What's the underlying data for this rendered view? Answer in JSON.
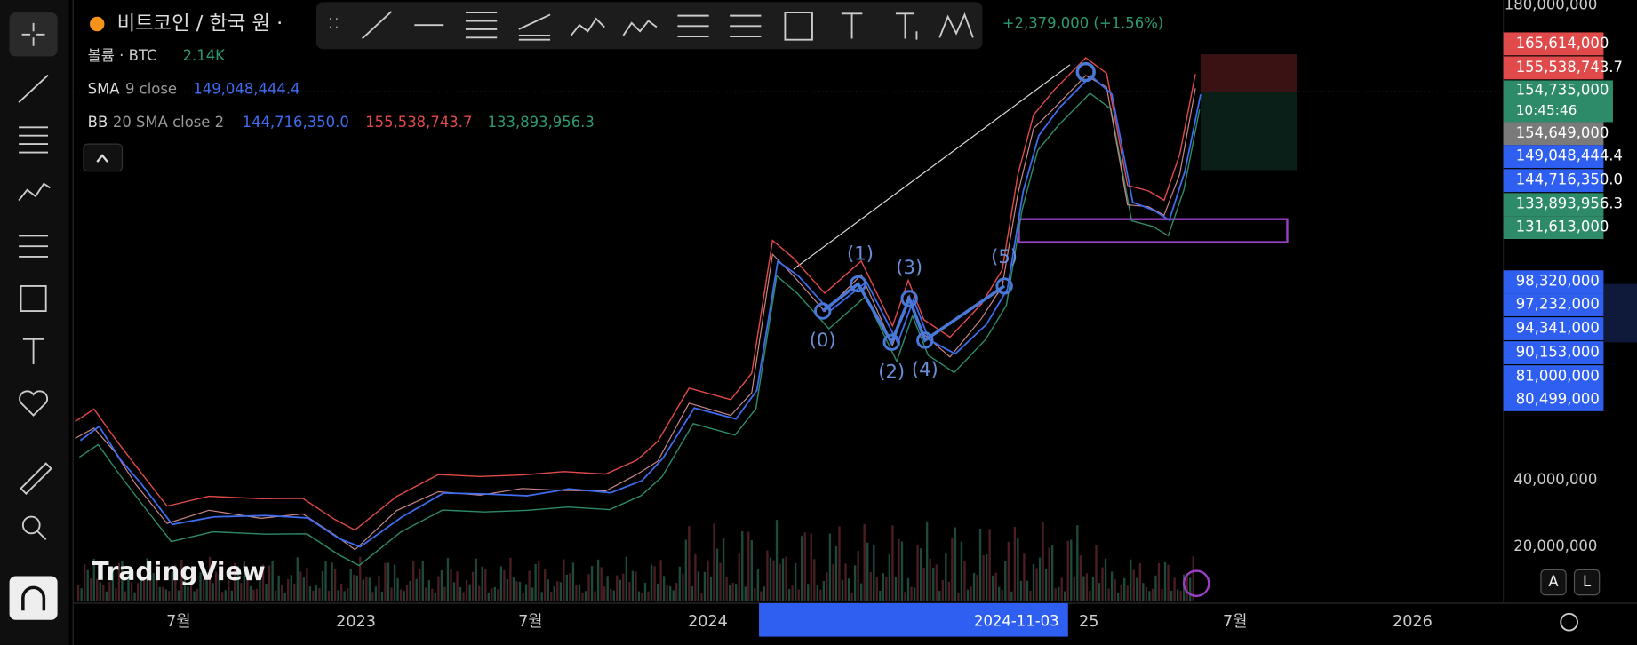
{
  "header": {
    "symbol": "비트코인 / 한국 원 ·",
    "change": "+2,379,000 (+1.56%)"
  },
  "legend": {
    "volume": {
      "label": "볼륨 · BTC",
      "value": "2.14K"
    },
    "sma": {
      "name": "SMA",
      "params": "9 close",
      "value": "149,048,444.4"
    },
    "bb": {
      "name": "BB",
      "params": "20 SMA close 2",
      "values": [
        "144,716,350.0",
        "155,538,743.7",
        "133,893,956.3"
      ]
    }
  },
  "price_axis": {
    "labels": [
      "180,000,000",
      "40,000,000",
      "20,000,000"
    ]
  },
  "price_labels": [
    {
      "text": "165,614,000",
      "color": "#e04a4a"
    },
    {
      "text": "155,538,743.7",
      "color": "#e04a4a"
    },
    {
      "text": "154,735,000",
      "sub": "10:45:46",
      "color": "#2e8b6a"
    },
    {
      "text": "154,649,000",
      "color": "#7a7a7a"
    },
    {
      "text": "149,048,444.4",
      "color": "#2f5ff0"
    },
    {
      "text": "144,716,350.0",
      "color": "#2f5ff0"
    },
    {
      "text": "133,893,956.3",
      "color": "#2e8b6a"
    },
    {
      "text": "131,613,000",
      "color": "#2e8b6a"
    },
    {
      "text": "98,320,000",
      "color": "#2f5ff0"
    },
    {
      "text": "97,232,000",
      "color": "#2f5ff0"
    },
    {
      "text": "94,341,000",
      "color": "#2f5ff0"
    },
    {
      "text": "90,153,000",
      "color": "#2f5ff0"
    },
    {
      "text": "81,000,000",
      "color": "#2f5ff0"
    },
    {
      "text": "80,499,000",
      "color": "#2f5ff0"
    }
  ],
  "time_axis": {
    "labels": [
      "7월",
      "2023",
      "7월",
      "2024",
      "25",
      "7월",
      "2026"
    ],
    "highlight": "2024-11-03"
  },
  "waves": [
    "(0)",
    "(1)",
    "(2)",
    "(3)",
    "(4)",
    "(5)"
  ],
  "watermark": "TradingView",
  "scale_buttons": [
    "A",
    "L"
  ]
}
